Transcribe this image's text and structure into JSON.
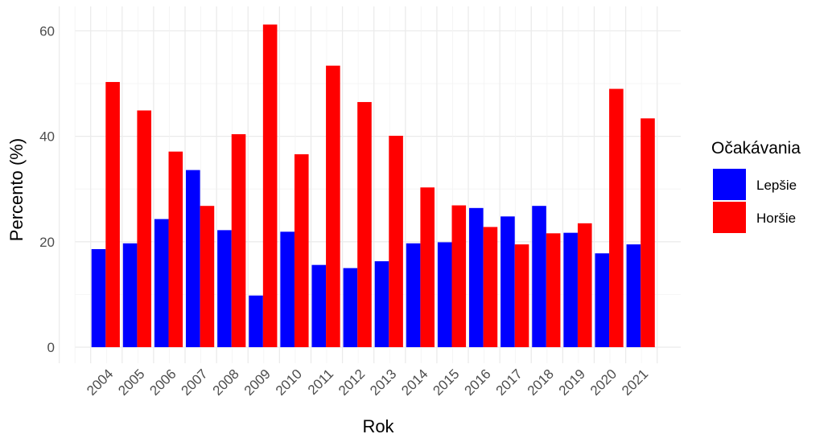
{
  "chart_data": {
    "type": "bar",
    "title": "",
    "xlabel": "Rok",
    "ylabel": "Percento (%)",
    "ylim": [
      0,
      64
    ],
    "yticks": [
      0,
      20,
      40,
      60
    ],
    "grid": true,
    "legend": {
      "title": "Očakávania",
      "position": "right"
    },
    "categories": [
      "2004",
      "2005",
      "2006",
      "2007",
      "2008",
      "2009",
      "2010",
      "2011",
      "2012",
      "2013",
      "2014",
      "2015",
      "2016",
      "2017",
      "2018",
      "2019",
      "2020",
      "2021"
    ],
    "series": [
      {
        "name": "Lepšie",
        "color": "#0000ff",
        "values": [
          18.6,
          19.7,
          24.3,
          33.6,
          22.2,
          9.8,
          21.9,
          15.6,
          15.0,
          16.3,
          19.7,
          19.9,
          26.4,
          24.8,
          26.8,
          21.7,
          17.8,
          19.5
        ]
      },
      {
        "name": "Horšie",
        "color": "#ff0000",
        "values": [
          50.3,
          44.9,
          37.1,
          26.8,
          40.4,
          61.2,
          36.6,
          53.4,
          46.5,
          40.1,
          30.3,
          26.9,
          22.8,
          19.5,
          21.6,
          23.5,
          49.0,
          43.4
        ]
      }
    ]
  }
}
